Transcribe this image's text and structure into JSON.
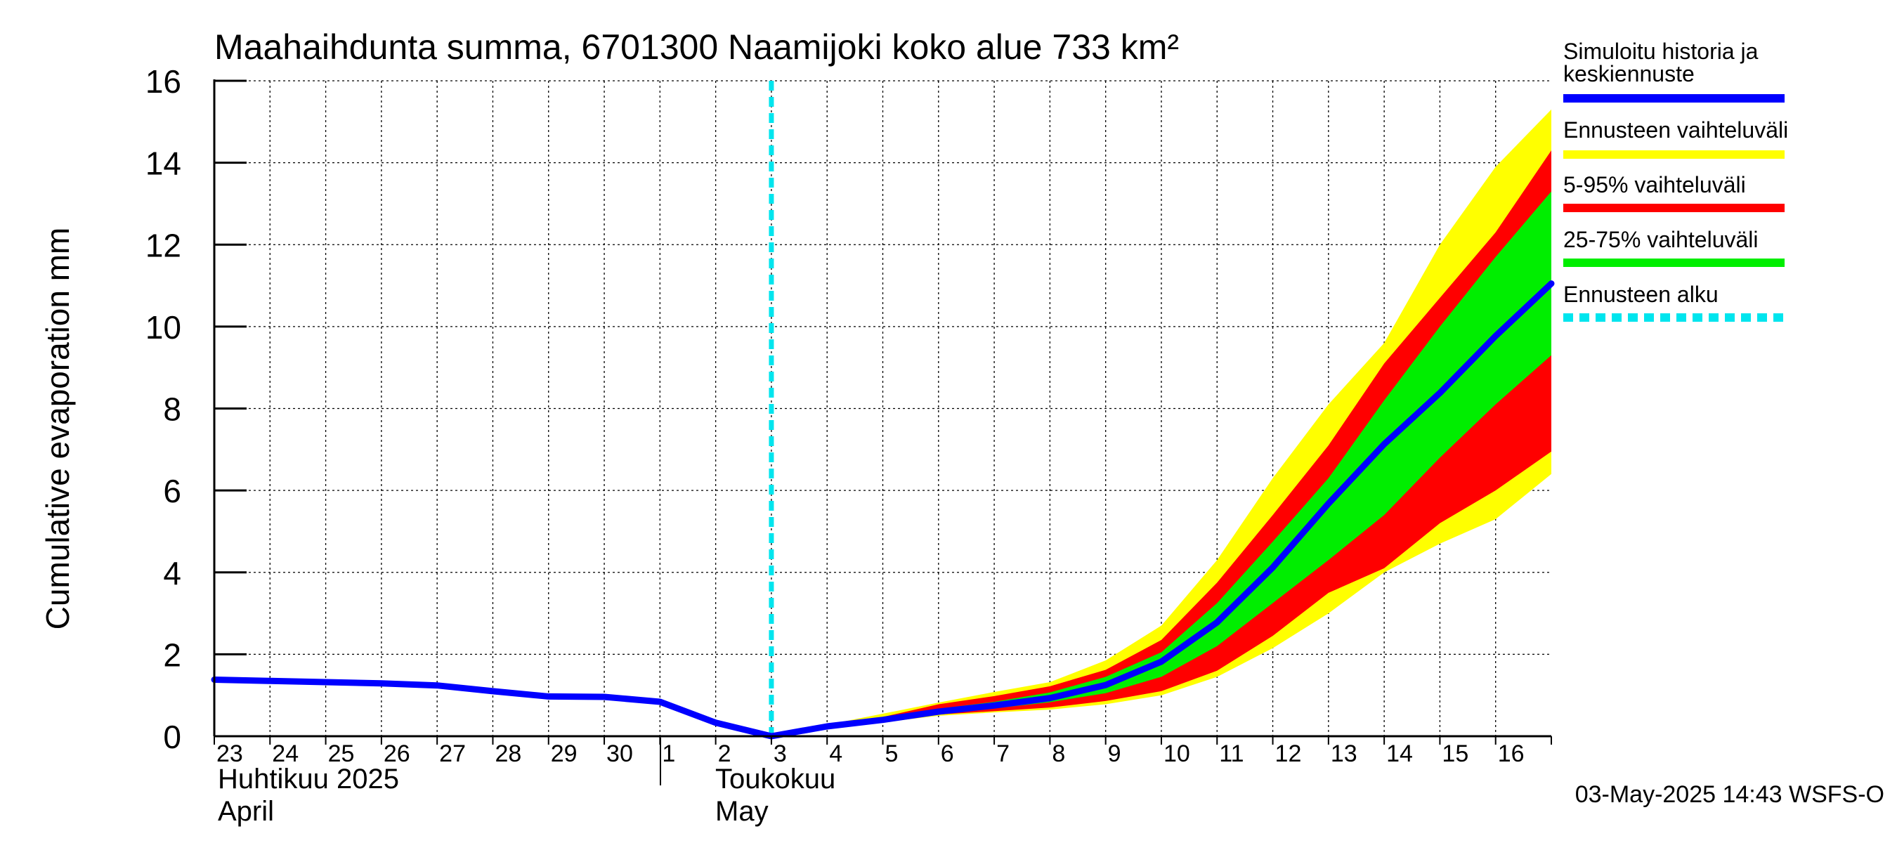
{
  "chart_data": {
    "type": "area",
    "title": "Maahaihdunta summa, 6701300 Naamijoki koko alue 733 km²",
    "ylabel": "Cumulative evaporation   mm",
    "ylim": [
      0,
      16
    ],
    "yticks": [
      0,
      2,
      4,
      6,
      8,
      10,
      12,
      14,
      16
    ],
    "xlim": [
      "2025-04-23",
      "2025-05-17"
    ],
    "grid": true,
    "x_tick_labels": [
      "23",
      "24",
      "25",
      "26",
      "27",
      "28",
      "29",
      "30",
      "1",
      "2",
      "3",
      "4",
      "5",
      "6",
      "7",
      "8",
      "9",
      "10",
      "11",
      "12",
      "13",
      "14",
      "15",
      "16"
    ],
    "month_labels": {
      "april_fi": "Huhtikuu  2025",
      "april_en": "April",
      "may_fi": "Toukokuu",
      "may_en": "May"
    },
    "forecast_start": "2025-05-03",
    "legend_position": "right",
    "legend": [
      {
        "label": "Simuloitu historia ja\nkeskiennuste",
        "color": "#0000ff",
        "style": "solid"
      },
      {
        "label": "Ennusteen vaihteluväli",
        "color": "#ffff00",
        "style": "solid"
      },
      {
        "label": "5-95% vaihteluväli",
        "color": "#ff0000",
        "style": "solid"
      },
      {
        "label": "25-75% vaihteluväli",
        "color": "#00ee00",
        "style": "solid"
      },
      {
        "label": "Ennusteen alku",
        "color": "#00e5ee",
        "style": "dashed"
      }
    ],
    "series": [
      {
        "name": "Simuloitu historia ja keskiennuste",
        "x": [
          "2025-04-23",
          "2025-04-24",
          "2025-04-25",
          "2025-04-26",
          "2025-04-27",
          "2025-04-28",
          "2025-04-29",
          "2025-04-30",
          "2025-05-01",
          "2025-05-02",
          "2025-05-03",
          "2025-05-04",
          "2025-05-05",
          "2025-05-06",
          "2025-05-07",
          "2025-05-08",
          "2025-05-09",
          "2025-05-10",
          "2025-05-11",
          "2025-05-12",
          "2025-05-13",
          "2025-05-14",
          "2025-05-15",
          "2025-05-16",
          "2025-05-17"
        ],
        "values": [
          1.38,
          1.35,
          1.32,
          1.29,
          1.24,
          1.1,
          0.97,
          0.96,
          0.84,
          0.33,
          0.0,
          0.24,
          0.4,
          0.6,
          0.75,
          0.93,
          1.25,
          1.82,
          2.78,
          4.12,
          5.68,
          7.13,
          8.38,
          9.77,
          11.05
        ]
      },
      {
        "name": "Ennusteen vaihteluväli",
        "x": [
          "2025-05-03",
          "2025-05-04",
          "2025-05-05",
          "2025-05-06",
          "2025-05-07",
          "2025-05-08",
          "2025-05-09",
          "2025-05-10",
          "2025-05-11",
          "2025-05-12",
          "2025-05-13",
          "2025-05-14",
          "2025-05-15",
          "2025-05-16",
          "2025-05-17"
        ],
        "upper": [
          0.0,
          0.28,
          0.55,
          0.82,
          1.08,
          1.32,
          1.85,
          2.7,
          4.3,
          6.3,
          8.1,
          9.6,
          12.0,
          13.9,
          15.3
        ],
        "lower": [
          0.0,
          0.2,
          0.34,
          0.5,
          0.58,
          0.65,
          0.78,
          1.0,
          1.45,
          2.15,
          3.0,
          4.0,
          4.7,
          5.3,
          6.4
        ]
      },
      {
        "name": "5-95% vaihteluväli",
        "x": [
          "2025-05-03",
          "2025-05-04",
          "2025-05-05",
          "2025-05-06",
          "2025-05-07",
          "2025-05-08",
          "2025-05-09",
          "2025-05-10",
          "2025-05-11",
          "2025-05-12",
          "2025-05-13",
          "2025-05-14",
          "2025-05-15",
          "2025-05-16",
          "2025-05-17"
        ],
        "upper": [
          0.0,
          0.26,
          0.47,
          0.78,
          0.98,
          1.22,
          1.62,
          2.35,
          3.75,
          5.4,
          7.1,
          9.1,
          10.7,
          12.3,
          14.3
        ],
        "lower": [
          0.0,
          0.21,
          0.36,
          0.53,
          0.61,
          0.7,
          0.86,
          1.1,
          1.6,
          2.45,
          3.5,
          4.1,
          5.2,
          6.0,
          6.95
        ]
      },
      {
        "name": "25-75% vaihteluväli",
        "x": [
          "2025-05-03",
          "2025-05-04",
          "2025-05-05",
          "2025-05-06",
          "2025-05-07",
          "2025-05-08",
          "2025-05-09",
          "2025-05-10",
          "2025-05-11",
          "2025-05-12",
          "2025-05-13",
          "2025-05-14",
          "2025-05-15",
          "2025-05-16",
          "2025-05-17"
        ],
        "upper": [
          0.0,
          0.25,
          0.43,
          0.67,
          0.84,
          1.07,
          1.45,
          2.05,
          3.25,
          4.75,
          6.3,
          8.2,
          10.0,
          11.7,
          13.3
        ],
        "lower": [
          0.0,
          0.22,
          0.37,
          0.56,
          0.68,
          0.83,
          1.05,
          1.45,
          2.2,
          3.25,
          4.3,
          5.4,
          6.8,
          8.1,
          9.3
        ]
      }
    ]
  },
  "footer": {
    "timestamp": "03-May-2025 14:43 WSFS-O"
  }
}
